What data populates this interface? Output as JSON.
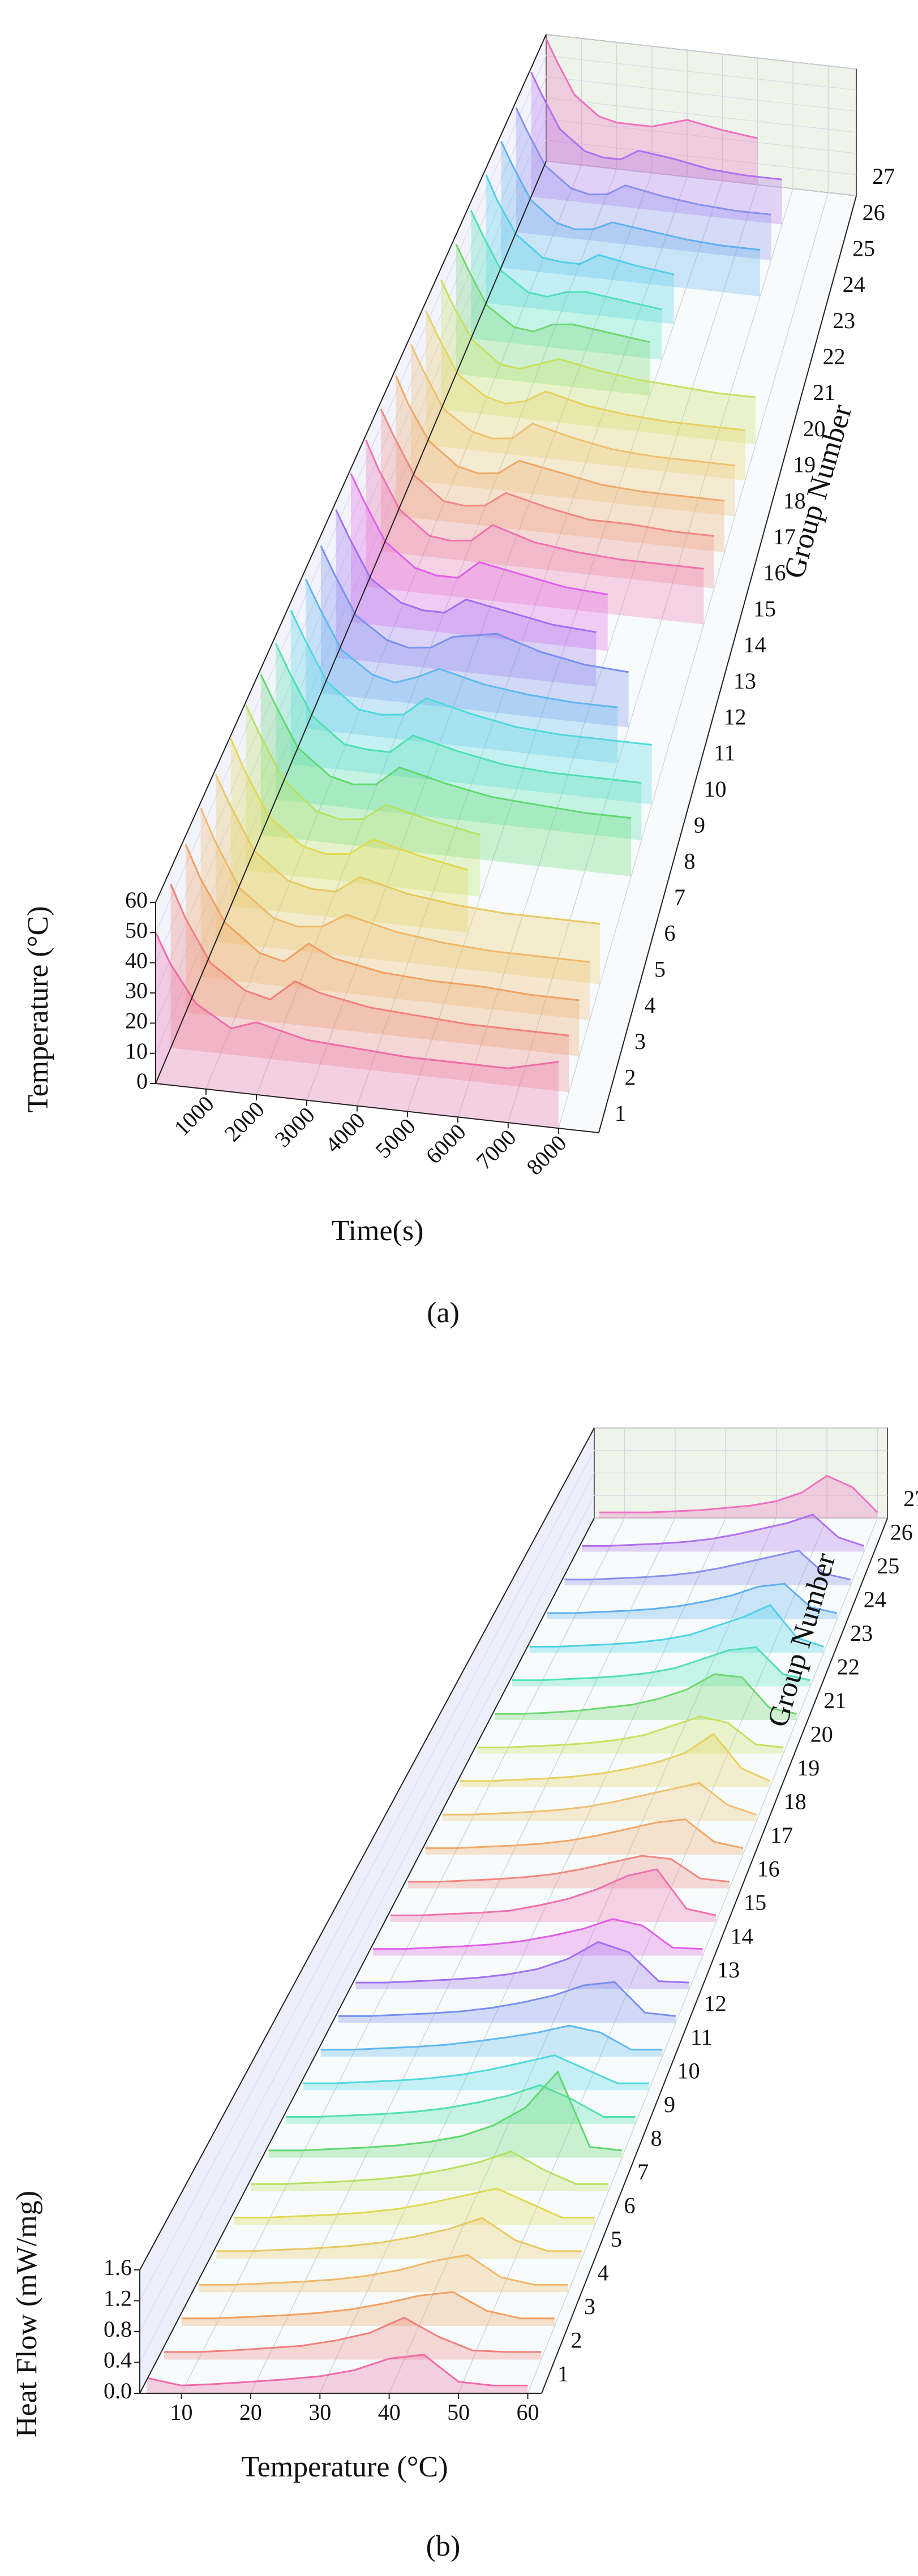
{
  "chart_data": [
    {
      "type": "waterfall3d",
      "xlabel": "Time(s)",
      "ylabel": "Temperature (°C)",
      "zlabel": "Group Number",
      "caption": "(a)",
      "xlim": [
        0,
        8800
      ],
      "xticks": [
        1000,
        2000,
        3000,
        4000,
        5000,
        6000,
        7000,
        8000
      ],
      "ylim": [
        0,
        60
      ],
      "yticks": [
        0,
        10,
        20,
        30,
        40,
        50,
        60
      ],
      "x": [
        0,
        300,
        800,
        1500,
        2000,
        2500,
        3000,
        4000,
        5000,
        6000,
        7000,
        8000
      ],
      "series": [
        {
          "name": "1",
          "color": "#f06aa8",
          "values": [
            50,
            40,
            28,
            21,
            24,
            22,
            20,
            19,
            18,
            18,
            18,
            22
          ]
        },
        {
          "name": "2",
          "color": "#f0807a",
          "values": [
            55,
            44,
            30,
            22,
            20,
            27,
            24,
            21,
            20,
            19,
            19,
            19
          ]
        },
        {
          "name": "3",
          "color": "#f0a060",
          "values": [
            57,
            46,
            32,
            23,
            21,
            28,
            24,
            21,
            20,
            20,
            19,
            19
          ]
        },
        {
          "name": "4",
          "color": "#f0b868",
          "values": [
            58,
            47,
            32,
            23,
            21,
            22,
            27,
            23,
            21,
            20,
            20,
            20
          ]
        },
        {
          "name": "5",
          "color": "#e8c860",
          "values": [
            58,
            48,
            33,
            24,
            22,
            22,
            28,
            24,
            22,
            21,
            21,
            21
          ]
        },
        {
          "name": "6",
          "color": "#e0d850",
          "values": [
            59,
            48,
            33,
            24,
            22,
            23,
            29,
            25,
            22,
            null,
            null,
            null
          ]
        },
        {
          "name": "7",
          "color": "#b8e060",
          "values": [
            59,
            49,
            34,
            24,
            22,
            23,
            29,
            25,
            22,
            null,
            null,
            null
          ]
        },
        {
          "name": "8",
          "color": "#60d870",
          "values": [
            58,
            48,
            33,
            24,
            22,
            23,
            30,
            26,
            23,
            22,
            21,
            21
          ]
        },
        {
          "name": "9",
          "color": "#50e0b0",
          "values": [
            57,
            47,
            32,
            23,
            22,
            22,
            29,
            25,
            22,
            21,
            21,
            21
          ]
        },
        {
          "name": "10",
          "color": "#50d8e0",
          "values": [
            57,
            47,
            32,
            23,
            22,
            23,
            30,
            26,
            23,
            22,
            22,
            22
          ]
        },
        {
          "name": "11",
          "color": "#60b8f0",
          "values": [
            56,
            46,
            31,
            23,
            21,
            24,
            28,
            24,
            22,
            21,
            21,
            null
          ]
        },
        {
          "name": "12",
          "color": "#7890f0",
          "values": [
            56,
            46,
            31,
            23,
            21,
            22,
            27,
            30,
            25,
            22,
            21,
            null
          ]
        },
        {
          "name": "13",
          "color": "#a070f0",
          "values": [
            57,
            47,
            32,
            24,
            22,
            22,
            28,
            25,
            22,
            21,
            null,
            null
          ]
        },
        {
          "name": "14",
          "color": "#e060e8",
          "values": [
            58,
            48,
            33,
            24,
            22,
            22,
            29,
            26,
            23,
            22,
            null,
            null
          ]
        },
        {
          "name": "15",
          "color": "#f070b0",
          "values": [
            58,
            47,
            32,
            23,
            22,
            23,
            30,
            25,
            23,
            22,
            22,
            22
          ]
        },
        {
          "name": "16",
          "color": "#f08880",
          "values": [
            57,
            47,
            32,
            23,
            22,
            23,
            29,
            25,
            22,
            22,
            21,
            21
          ]
        },
        {
          "name": "17",
          "color": "#f0a868",
          "values": [
            57,
            46,
            32,
            23,
            21,
            22,
            28,
            25,
            22,
            21,
            21,
            21
          ]
        },
        {
          "name": "18",
          "color": "#f0c070",
          "values": [
            56,
            46,
            31,
            23,
            21,
            22,
            29,
            25,
            22,
            21,
            21,
            21
          ]
        },
        {
          "name": "19",
          "color": "#e8d060",
          "values": [
            56,
            46,
            31,
            23,
            21,
            23,
            28,
            24,
            22,
            21,
            21,
            21
          ]
        },
        {
          "name": "20",
          "color": "#c8e060",
          "values": [
            55,
            45,
            31,
            22,
            21,
            24,
            27,
            24,
            22,
            21,
            20,
            20
          ]
        },
        {
          "name": "21",
          "color": "#70d870",
          "values": [
            56,
            46,
            31,
            23,
            22,
            26,
            27,
            25,
            23,
            null,
            null,
            null
          ]
        },
        {
          "name": "22",
          "color": "#50e0b8",
          "values": [
            56,
            46,
            31,
            23,
            22,
            25,
            26,
            24,
            22,
            null,
            null,
            null
          ]
        },
        {
          "name": "23",
          "color": "#50d0e8",
          "values": [
            57,
            46,
            32,
            23,
            22,
            22,
            27,
            24,
            22,
            null,
            null,
            null
          ]
        },
        {
          "name": "24",
          "color": "#60b0f0",
          "values": [
            57,
            47,
            32,
            23,
            21,
            22,
            26,
            24,
            22,
            21,
            21,
            null
          ]
        },
        {
          "name": "25",
          "color": "#8890f0",
          "values": [
            57,
            47,
            32,
            23,
            21,
            22,
            27,
            24,
            22,
            21,
            21,
            null
          ]
        },
        {
          "name": "26",
          "color": "#b070f0",
          "values": [
            58,
            48,
            33,
            24,
            22,
            22,
            27,
            25,
            22,
            21,
            21,
            null
          ]
        },
        {
          "name": "27",
          "color": "#f070c0",
          "values": [
            58,
            48,
            33,
            24,
            22,
            22,
            22,
            27,
            24,
            22,
            null,
            null
          ]
        }
      ]
    },
    {
      "type": "waterfall3d",
      "xlabel": "Temperature (°C)",
      "ylabel": "Heat Flow (mW/mg)",
      "zlabel": "Group Number",
      "caption": "(b)",
      "xlim": [
        4,
        62
      ],
      "xticks": [
        10,
        20,
        30,
        40,
        50,
        60
      ],
      "ylim": [
        0,
        1.6
      ],
      "yticks": [
        {
          "value": 0,
          "label": "0.0"
        },
        0.4,
        0.8,
        1.2,
        1.6
      ],
      "x": [
        5,
        10,
        15,
        20,
        25,
        30,
        35,
        40,
        45,
        50,
        55,
        60
      ],
      "series": [
        {
          "name": "1",
          "color": "#f06aa8",
          "values": [
            0.2,
            0.1,
            0.12,
            0.15,
            0.18,
            0.22,
            0.3,
            0.45,
            0.5,
            0.15,
            0.1,
            0.1
          ]
        },
        {
          "name": "2",
          "color": "#f0807a",
          "values": [
            0.1,
            0.1,
            0.12,
            0.15,
            0.18,
            0.25,
            0.35,
            0.55,
            0.3,
            0.12,
            0.1,
            0.1
          ]
        },
        {
          "name": "3",
          "color": "#f0a060",
          "values": [
            0.1,
            0.1,
            0.12,
            0.14,
            0.17,
            0.22,
            0.3,
            0.4,
            0.45,
            0.2,
            0.1,
            0.1
          ]
        },
        {
          "name": "4",
          "color": "#f0b868",
          "values": [
            0.1,
            0.1,
            0.12,
            0.14,
            0.17,
            0.22,
            0.3,
            0.42,
            0.5,
            0.2,
            0.1,
            0.1
          ]
        },
        {
          "name": "5",
          "color": "#e8c860",
          "values": [
            0.1,
            0.1,
            0.12,
            0.14,
            0.17,
            0.22,
            0.3,
            0.4,
            0.55,
            0.25,
            0.1,
            0.1
          ]
        },
        {
          "name": "6",
          "color": "#e0d850",
          "values": [
            0.1,
            0.1,
            0.12,
            0.14,
            0.17,
            0.22,
            0.3,
            0.4,
            0.5,
            0.3,
            0.1,
            0.1
          ]
        },
        {
          "name": "7",
          "color": "#b8e060",
          "values": [
            0.1,
            0.1,
            0.12,
            0.14,
            0.17,
            0.22,
            0.3,
            0.4,
            0.55,
            0.3,
            0.1,
            0.1
          ]
        },
        {
          "name": "8",
          "color": "#60d870",
          "values": [
            0.1,
            0.1,
            0.12,
            0.14,
            0.17,
            0.22,
            0.3,
            0.45,
            0.7,
            1.2,
            0.15,
            0.1
          ]
        },
        {
          "name": "9",
          "color": "#50e0b0",
          "values": [
            0.1,
            0.1,
            0.12,
            0.14,
            0.17,
            0.22,
            0.3,
            0.4,
            0.55,
            0.35,
            0.1,
            0.1
          ]
        },
        {
          "name": "10",
          "color": "#50d8e0",
          "values": [
            0.1,
            0.1,
            0.12,
            0.14,
            0.17,
            0.22,
            0.3,
            0.4,
            0.5,
            0.3,
            0.1,
            0.1
          ]
        },
        {
          "name": "11",
          "color": "#60b8f0",
          "values": [
            0.1,
            0.1,
            0.12,
            0.14,
            0.17,
            0.22,
            0.28,
            0.35,
            0.45,
            0.35,
            0.1,
            0.1
          ]
        },
        {
          "name": "12",
          "color": "#7890f0",
          "values": [
            0.1,
            0.1,
            0.12,
            0.14,
            0.17,
            0.22,
            0.3,
            0.4,
            0.55,
            0.6,
            0.15,
            0.1
          ]
        },
        {
          "name": "13",
          "color": "#a070f0",
          "values": [
            0.1,
            0.1,
            0.12,
            0.14,
            0.17,
            0.22,
            0.3,
            0.45,
            0.7,
            0.55,
            0.12,
            0.1
          ]
        },
        {
          "name": "14",
          "color": "#e060e8",
          "values": [
            0.1,
            0.1,
            0.12,
            0.14,
            0.17,
            0.22,
            0.3,
            0.4,
            0.55,
            0.45,
            0.12,
            0.1
          ]
        },
        {
          "name": "15",
          "color": "#f070b0",
          "values": [
            0.1,
            0.1,
            0.12,
            0.14,
            0.17,
            0.25,
            0.35,
            0.5,
            0.7,
            0.8,
            0.2,
            0.1
          ]
        },
        {
          "name": "16",
          "color": "#f08880",
          "values": [
            0.1,
            0.1,
            0.12,
            0.14,
            0.17,
            0.22,
            0.3,
            0.4,
            0.5,
            0.45,
            0.15,
            0.1
          ]
        },
        {
          "name": "17",
          "color": "#f0a868",
          "values": [
            0.1,
            0.1,
            0.12,
            0.14,
            0.17,
            0.22,
            0.3,
            0.4,
            0.5,
            0.55,
            0.2,
            0.1
          ]
        },
        {
          "name": "18",
          "color": "#f0c070",
          "values": [
            0.1,
            0.1,
            0.12,
            0.14,
            0.17,
            0.22,
            0.3,
            0.4,
            0.5,
            0.6,
            0.25,
            0.1
          ]
        },
        {
          "name": "19",
          "color": "#e8d060",
          "values": [
            0.1,
            0.1,
            0.12,
            0.14,
            0.17,
            0.22,
            0.3,
            0.4,
            0.55,
            0.85,
            0.3,
            0.1
          ]
        },
        {
          "name": "20",
          "color": "#c8e060",
          "values": [
            0.1,
            0.1,
            0.12,
            0.14,
            0.17,
            0.22,
            0.3,
            0.45,
            0.6,
            0.5,
            0.15,
            0.1
          ]
        },
        {
          "name": "21",
          "color": "#70d870",
          "values": [
            0.1,
            0.1,
            0.12,
            0.15,
            0.2,
            0.25,
            0.35,
            0.5,
            0.75,
            0.7,
            0.2,
            0.1
          ]
        },
        {
          "name": "22",
          "color": "#50e0b8",
          "values": [
            0.1,
            0.1,
            0.12,
            0.14,
            0.17,
            0.22,
            0.3,
            0.45,
            0.6,
            0.65,
            0.2,
            0.1
          ]
        },
        {
          "name": "23",
          "color": "#50d0e8",
          "values": [
            0.1,
            0.1,
            0.12,
            0.14,
            0.17,
            0.22,
            0.3,
            0.45,
            0.6,
            0.8,
            0.25,
            0.1
          ]
        },
        {
          "name": "24",
          "color": "#60b0f0",
          "values": [
            0.1,
            0.1,
            0.12,
            0.14,
            0.17,
            0.22,
            0.3,
            0.4,
            0.55,
            0.6,
            0.2,
            0.1
          ]
        },
        {
          "name": "25",
          "color": "#8890f0",
          "values": [
            0.1,
            0.1,
            0.12,
            0.14,
            0.17,
            0.22,
            0.3,
            0.4,
            0.5,
            0.6,
            0.2,
            0.1
          ]
        },
        {
          "name": "26",
          "color": "#b070f0",
          "values": [
            0.1,
            0.1,
            0.12,
            0.14,
            0.17,
            0.22,
            0.3,
            0.4,
            0.5,
            0.65,
            0.25,
            0.1
          ]
        },
        {
          "name": "27",
          "color": "#f070c0",
          "values": [
            0.1,
            0.1,
            0.1,
            0.12,
            0.14,
            0.18,
            0.22,
            0.3,
            0.45,
            0.75,
            0.55,
            0.1
          ]
        }
      ]
    }
  ]
}
